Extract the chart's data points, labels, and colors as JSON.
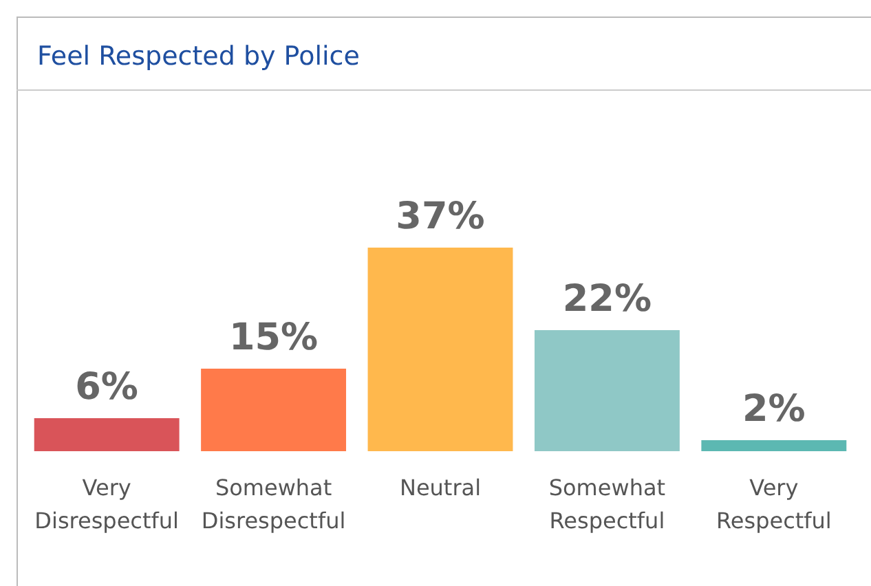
{
  "chart_data": {
    "type": "bar",
    "title": "Feel Respected by Police",
    "categories": [
      "Very Disrespectful",
      "Somewhat Disrespectful",
      "Neutral",
      "Somewhat Respectful",
      "Very Respectful"
    ],
    "values": [
      6,
      15,
      37,
      22,
      2
    ],
    "colors": [
      "#d95459",
      "#ff7a4a",
      "#ffb84d",
      "#8fc8c6",
      "#5cb8b2"
    ],
    "data_labels": true,
    "value_labels": [
      "6%",
      "15%",
      "37%",
      "22%",
      "2%"
    ]
  }
}
